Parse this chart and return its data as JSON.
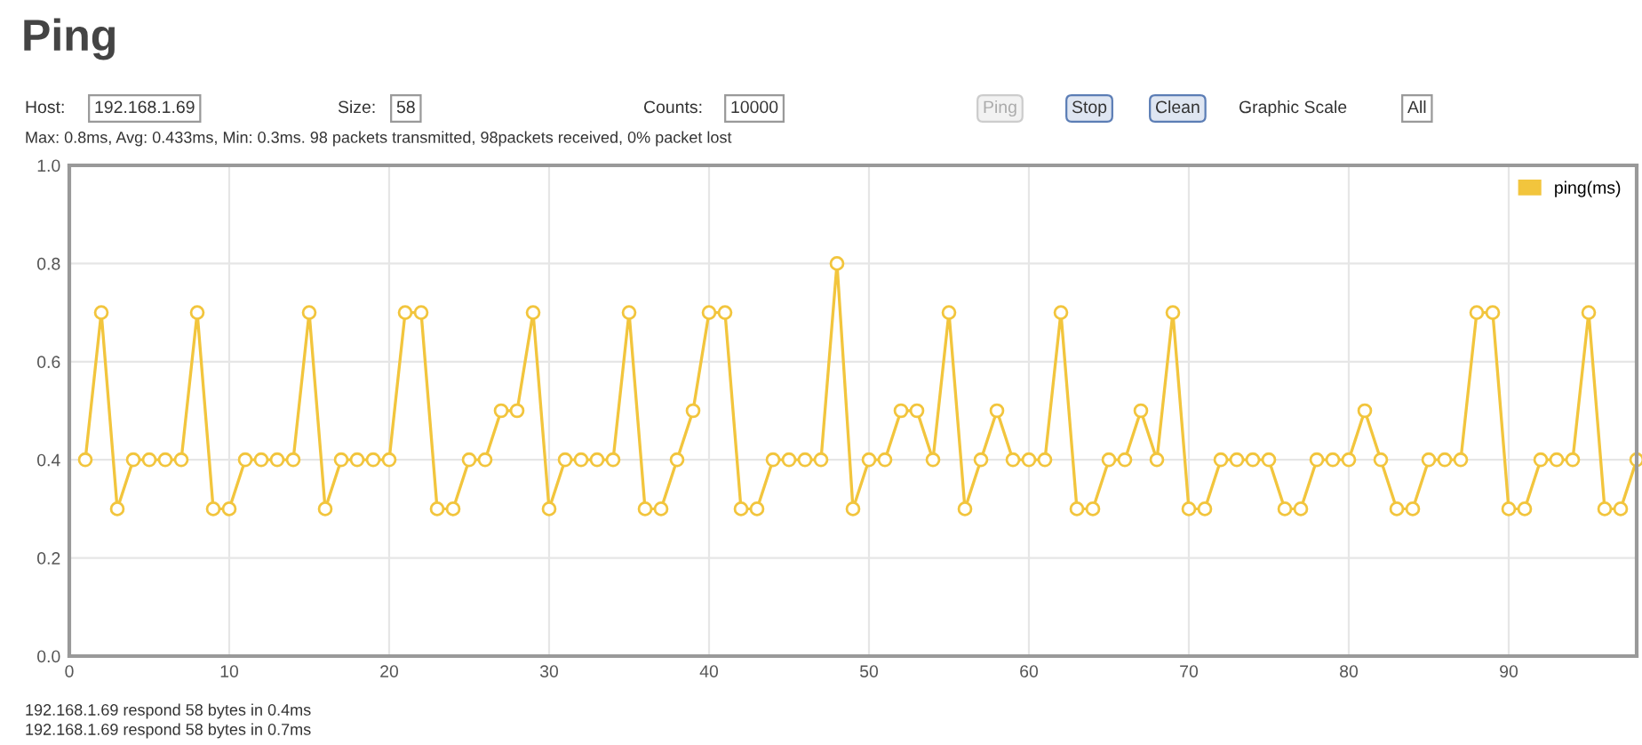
{
  "chart_data": {
    "type": "line",
    "title": "Ping",
    "annotations": [
      "Host:",
      "192.168.1.69",
      "Size:",
      "58",
      "Counts:",
      "10000",
      "Ping",
      "Stop",
      "Clean",
      "Graphic Scale",
      "All",
      "Max: 0.8ms, Avg: 0.433ms, Min: 0.3ms. 98 packets transmitted, 98packets received, 0% packet lost",
      "192.168.1.69 respond 58 bytes in 0.4ms",
      "192.168.1.69 respond 58 bytes in 0.7ms"
    ],
    "x": [
      1,
      2,
      3,
      4,
      5,
      6,
      7,
      8,
      9,
      10,
      11,
      12,
      13,
      14,
      15,
      16,
      17,
      18,
      19,
      20,
      21,
      22,
      23,
      24,
      25,
      26,
      27,
      28,
      29,
      30,
      31,
      32,
      33,
      34,
      35,
      36,
      37,
      38,
      39,
      40,
      41,
      42,
      43,
      44,
      45,
      46,
      47,
      48,
      49,
      50,
      51,
      52,
      53,
      54,
      55,
      56,
      57,
      58,
      59,
      60,
      61,
      62,
      63,
      64,
      65,
      66,
      67,
      68,
      69,
      70,
      71,
      72,
      73,
      74,
      75,
      76,
      77,
      78,
      79,
      80,
      81,
      82,
      83,
      84,
      85,
      86,
      87,
      88,
      89,
      90,
      91,
      92,
      93,
      94,
      95,
      96,
      97,
      98
    ],
    "series": [
      {
        "name": "ping(ms)",
        "color": "#f2c53d",
        "values": [
          0.4,
          0.7,
          0.3,
          0.4,
          0.4,
          0.4,
          0.4,
          0.7,
          0.3,
          0.3,
          0.4,
          0.4,
          0.4,
          0.4,
          0.7,
          0.3,
          0.4,
          0.4,
          0.4,
          0.4,
          0.7,
          0.7,
          0.3,
          0.3,
          0.4,
          0.4,
          0.5,
          0.5,
          0.7,
          0.3,
          0.4,
          0.4,
          0.4,
          0.4,
          0.7,
          0.3,
          0.3,
          0.4,
          0.5,
          0.7,
          0.7,
          0.3,
          0.3,
          0.4,
          0.4,
          0.4,
          0.4,
          0.8,
          0.3,
          0.4,
          0.4,
          0.5,
          0.5,
          0.4,
          0.7,
          0.3,
          0.4,
          0.5,
          0.4,
          0.4,
          0.4,
          0.7,
          0.3,
          0.3,
          0.4,
          0.4,
          0.5,
          0.4,
          0.7,
          0.3,
          0.3,
          0.4,
          0.4,
          0.4,
          0.4,
          0.3,
          0.3,
          0.4,
          0.4,
          0.4,
          0.5,
          0.4,
          0.3,
          0.3,
          0.4,
          0.4,
          0.4,
          0.7,
          0.7,
          0.3,
          0.3,
          0.4,
          0.4,
          0.4,
          0.7,
          0.3,
          0.3,
          0.4
        ]
      }
    ],
    "xlim": [
      0,
      98
    ],
    "ylim": [
      0,
      1
    ],
    "xticks": [
      0,
      10,
      20,
      30,
      40,
      50,
      60,
      70,
      80,
      90
    ],
    "yticks": [
      {
        "value": 0,
        "label": "0.0"
      },
      {
        "value": 0.2,
        "label": "0.2"
      },
      {
        "value": 0.4,
        "label": "0.4"
      },
      {
        "value": 0.6,
        "label": "0.6"
      },
      {
        "value": 0.8,
        "label": "0.8"
      },
      {
        "value": 1,
        "label": "1.0"
      }
    ],
    "grid": true,
    "legend": "top right",
    "marker": "circle",
    "line_style": "solid"
  }
}
